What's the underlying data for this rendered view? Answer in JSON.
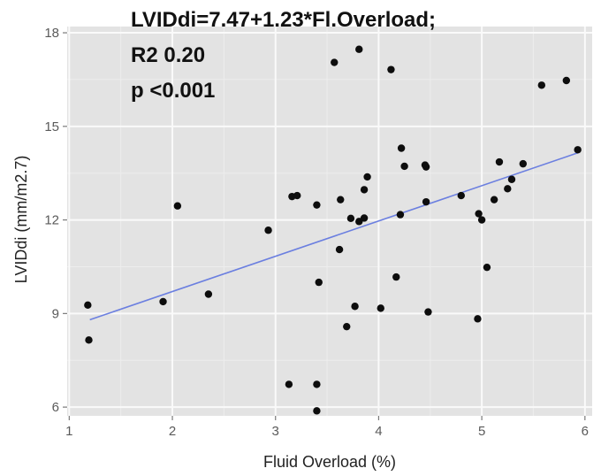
{
  "chart_data": {
    "type": "scatter",
    "xlabel": "Fluid Overload (%)",
    "ylabel": "LVIDdi (mm/m2.7)",
    "xlim": [
      0.98,
      6.07
    ],
    "ylim": [
      5.72,
      18.2
    ],
    "x_ticks": [
      1,
      2,
      3,
      4,
      5,
      6
    ],
    "y_ticks": [
      6,
      9,
      12,
      15,
      18
    ],
    "grid": true,
    "legend": "none",
    "annotation": [
      "LVIDdi=7.47+1.23*Fl.Overload;",
      "R2 0.20",
      "p <0.001"
    ],
    "fit_line": {
      "intercept": 7.47,
      "slope": 1.23,
      "x_range": [
        1.2,
        5.93
      ],
      "y_range": [
        8.8,
        14.15
      ],
      "color": "#6b7fe0"
    },
    "points": [
      [
        1.18,
        9.27
      ],
      [
        1.19,
        8.15
      ],
      [
        1.91,
        9.38
      ],
      [
        2.05,
        12.45
      ],
      [
        2.35,
        9.62
      ],
      [
        2.93,
        11.67
      ],
      [
        3.13,
        6.73
      ],
      [
        3.16,
        12.75
      ],
      [
        3.21,
        12.78
      ],
      [
        3.4,
        12.48
      ],
      [
        3.4,
        6.73
      ],
      [
        3.4,
        5.88
      ],
      [
        3.42,
        10.0
      ],
      [
        3.57,
        17.05
      ],
      [
        3.62,
        11.05
      ],
      [
        3.63,
        12.65
      ],
      [
        3.69,
        8.58
      ],
      [
        3.73,
        12.05
      ],
      [
        3.77,
        9.23
      ],
      [
        3.81,
        17.47
      ],
      [
        3.81,
        11.95
      ],
      [
        3.86,
        12.97
      ],
      [
        3.86,
        12.06
      ],
      [
        3.89,
        13.38
      ],
      [
        4.02,
        9.17
      ],
      [
        4.12,
        16.82
      ],
      [
        4.17,
        10.17
      ],
      [
        4.21,
        12.17
      ],
      [
        4.22,
        14.3
      ],
      [
        4.25,
        13.72
      ],
      [
        4.45,
        13.76
      ],
      [
        4.46,
        13.7
      ],
      [
        4.46,
        12.58
      ],
      [
        4.48,
        9.05
      ],
      [
        4.8,
        12.78
      ],
      [
        4.96,
        8.83
      ],
      [
        4.97,
        12.2
      ],
      [
        5.0,
        12.0
      ],
      [
        5.05,
        10.48
      ],
      [
        5.12,
        12.65
      ],
      [
        5.17,
        13.86
      ],
      [
        5.25,
        13.0
      ],
      [
        5.29,
        13.3
      ],
      [
        5.4,
        13.8
      ],
      [
        5.58,
        16.32
      ],
      [
        5.82,
        16.47
      ],
      [
        5.93,
        14.25
      ]
    ],
    "colors": {
      "panel": "#e3e3e3",
      "grid_major": "#fafafa",
      "grid_minor": "#ededed",
      "point": "#0d0d0d"
    }
  }
}
